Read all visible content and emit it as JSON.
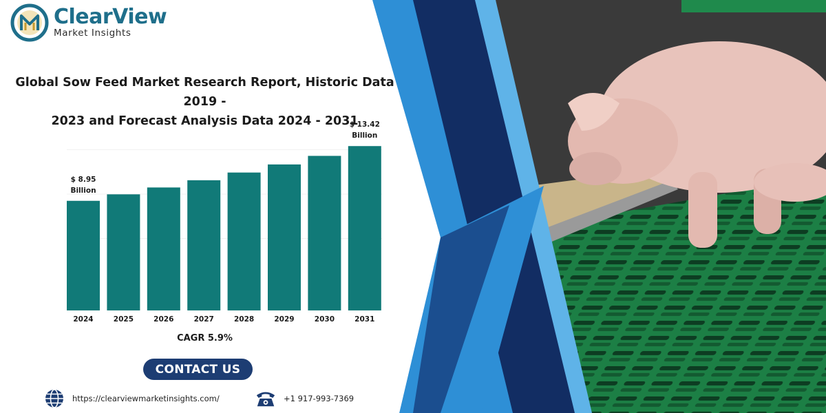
{
  "brand": {
    "name": "ClearView",
    "tagline": "Market Insights",
    "logo_letters": "M",
    "color": "#1f6f8b"
  },
  "report": {
    "title_line1": "Global Sow Feed Market Research Report, Historic Data 2019 -",
    "title_line2": "2023 and Forecast Analysis Data 2024 - 2031"
  },
  "chart_data": {
    "type": "bar",
    "categories": [
      "2024",
      "2025",
      "2026",
      "2027",
      "2028",
      "2029",
      "2030",
      "2031"
    ],
    "values": [
      8.95,
      9.48,
      10.04,
      10.63,
      11.26,
      11.92,
      12.62,
      13.42
    ],
    "unit": "Billion USD",
    "ylim": [
      0,
      14.5
    ],
    "grid": false,
    "bar_color": "#117a78",
    "annotations": [
      {
        "category": "2024",
        "line1": "$ 8.95",
        "line2": "Billion"
      },
      {
        "category": "2031",
        "line1": "$ 13.42",
        "line2": "Billion"
      }
    ],
    "cagr_label": "CAGR 5.9%"
  },
  "contact": {
    "label": "CONTACT US",
    "color": "#1d3d73"
  },
  "footer": {
    "website": "https://clearviewmarketinsights.com/",
    "website_icon": "globe-icon",
    "phone": "+1 917-993-7369",
    "phone_icon": "telephone-icon"
  },
  "colors": {
    "stripe_light": "#2e8fd6",
    "stripe_dark": "#122d63",
    "floor_green": "#1f8a4c",
    "pig_pink": "#e9c4bc"
  }
}
